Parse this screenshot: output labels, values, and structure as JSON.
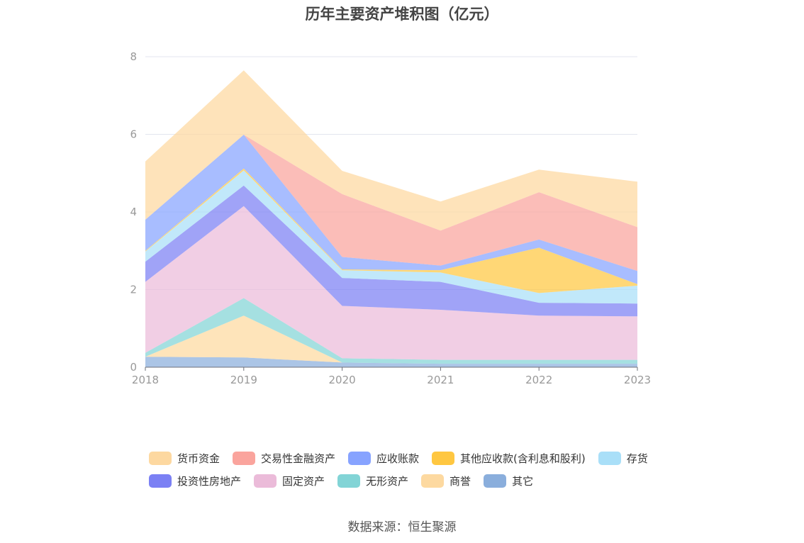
{
  "source": "数据来源：恒生聚源",
  "chart_data": {
    "type": "area",
    "stacked": true,
    "title": "历年主要资产堆积图（亿元）",
    "x": [
      "2018",
      "2019",
      "2020",
      "2021",
      "2022",
      "2023"
    ],
    "ylim": [
      0,
      8
    ],
    "yticks": [
      0,
      2,
      4,
      6,
      8
    ],
    "grid": true,
    "legend_position": "bottom",
    "series": [
      {
        "name": "其它",
        "color": "#8aaedc",
        "values": [
          0.27,
          0.25,
          0.12,
          0.09,
          0.09,
          0.09
        ]
      },
      {
        "name": "商誉",
        "color": "#fdd9a0",
        "values": [
          0.0,
          1.08,
          0.0,
          0.0,
          0.0,
          0.0
        ]
      },
      {
        "name": "无形资产",
        "color": "#82d4d6",
        "values": [
          0.1,
          0.45,
          0.11,
          0.1,
          0.1,
          0.1
        ]
      },
      {
        "name": "固定资产",
        "color": "#ebbbd9",
        "values": [
          1.83,
          2.37,
          1.35,
          1.29,
          1.14,
          1.12
        ]
      },
      {
        "name": "投资性房地产",
        "color": "#7b80f4",
        "values": [
          0.52,
          0.53,
          0.72,
          0.72,
          0.33,
          0.33
        ]
      },
      {
        "name": "存货",
        "color": "#a9dff8",
        "values": [
          0.26,
          0.39,
          0.2,
          0.24,
          0.25,
          0.46
        ]
      },
      {
        "name": "其他应收款(含利息和股利)",
        "color": "#ffc741",
        "values": [
          0.02,
          0.05,
          0.02,
          0.06,
          1.17,
          0.04
        ]
      },
      {
        "name": "应收账款",
        "color": "#87a3ff",
        "values": [
          0.8,
          0.87,
          0.32,
          0.12,
          0.21,
          0.34
        ]
      },
      {
        "name": "交易性金融资产",
        "color": "#faa49d",
        "values": [
          0.0,
          0.0,
          1.62,
          0.9,
          1.22,
          1.13
        ]
      },
      {
        "name": "货币资金",
        "color": "#fdd8a0",
        "values": [
          1.5,
          1.66,
          0.6,
          0.75,
          0.58,
          1.17
        ]
      }
    ],
    "legend_order": [
      "货币资金",
      "交易性金融资产",
      "应收账款",
      "其他应收款(含利息和股利)",
      "存货",
      "投资性房地产",
      "固定资产",
      "无形资产",
      "商誉",
      "其它"
    ]
  }
}
